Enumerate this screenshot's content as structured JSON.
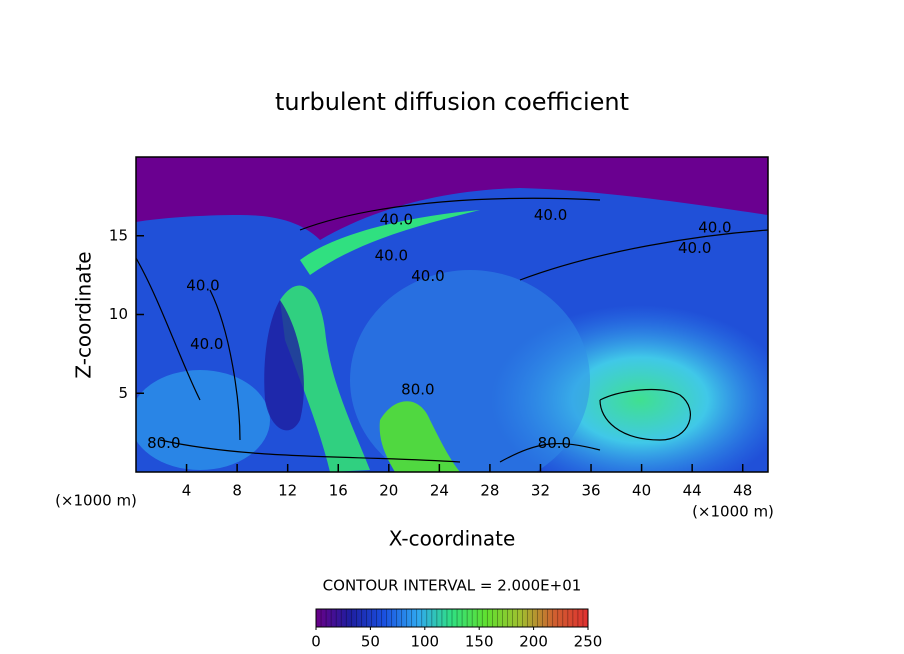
{
  "chart_data": {
    "type": "contour",
    "title": "turbulent diffusion coefficient",
    "x_label": "X-coordinate",
    "y_label": "Z-coordinate",
    "x_unit_label": "(×1000 m)",
    "y_unit_label": "(×1000 m)",
    "xlim": [
      0,
      50
    ],
    "ylim": [
      0,
      20
    ],
    "xticks": [
      4,
      8,
      12,
      16,
      20,
      24,
      28,
      32,
      36,
      40,
      44,
      48
    ],
    "yticks": [
      5,
      10,
      15
    ],
    "contour_interval_label": "CONTOUR INTERVAL = 2.000E+01",
    "contour_labels": [
      {
        "text": "40.0",
        "x": 32.8,
        "y": 16.3
      },
      {
        "text": "40.0",
        "x": 45.8,
        "y": 15.5
      },
      {
        "text": "40.0",
        "x": 44.2,
        "y": 14.2
      },
      {
        "text": "40.0",
        "x": 20.6,
        "y": 16.0
      },
      {
        "text": "40.0",
        "x": 20.2,
        "y": 13.7
      },
      {
        "text": "40.0",
        "x": 23.1,
        "y": 12.4
      },
      {
        "text": "40.0",
        "x": 5.3,
        "y": 11.8
      },
      {
        "text": "40.0",
        "x": 5.6,
        "y": 8.1
      },
      {
        "text": "80.0",
        "x": 2.2,
        "y": 1.8
      },
      {
        "text": "80.0",
        "x": 33.1,
        "y": 1.8
      },
      {
        "text": "80.0",
        "x": 22.3,
        "y": 5.2
      }
    ],
    "colorbar": {
      "lim": [
        0,
        250
      ],
      "ticks": [
        0,
        50,
        100,
        150,
        200,
        250
      ],
      "colors": [
        "#6a0088",
        "#1e1ea0",
        "#1a50e0",
        "#30a8f0",
        "#30e080",
        "#60e030",
        "#a0c030",
        "#d06030",
        "#e03030"
      ]
    }
  }
}
